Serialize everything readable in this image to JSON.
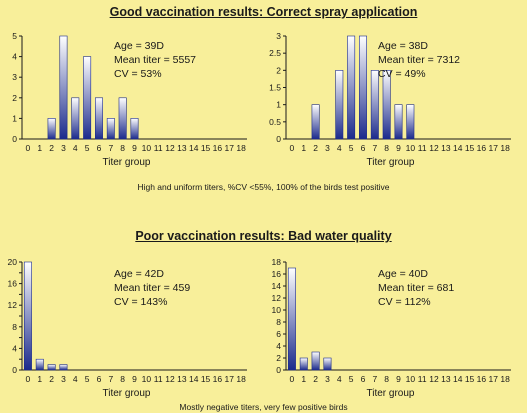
{
  "sections": [
    {
      "title": "Good vaccination results: Correct spray application",
      "caption": "High and uniform titers, %CV <55%, 100% of the birds test positive"
    },
    {
      "title": "Poor vaccination results: Bad water quality",
      "caption": "Mostly negative titers, very few positive birds"
    }
  ],
  "colors": {
    "background": "#f8ef9a",
    "bar_dark": "#1b2a8c",
    "bar_light": "#ffffff",
    "axis": "#1a1a1a"
  },
  "chart_data": [
    {
      "type": "bar",
      "categories": [
        "0",
        "1",
        "2",
        "3",
        "4",
        "5",
        "6",
        "7",
        "8",
        "9",
        "10",
        "11",
        "12",
        "13",
        "14",
        "15",
        "16",
        "17",
        "18"
      ],
      "values": [
        0,
        0,
        1,
        5,
        2,
        4,
        2,
        1,
        2,
        1,
        0,
        0,
        0,
        0,
        0,
        0,
        0,
        0,
        0
      ],
      "xlabel": "Titer group",
      "ylabel": "",
      "ylim": [
        0,
        5
      ],
      "yticks": [
        "0",
        "1",
        "2",
        "3",
        "4",
        "5"
      ],
      "grid": false,
      "stats": [
        "Age = 39D",
        "Mean titer = 5557",
        "CV = 53%"
      ]
    },
    {
      "type": "bar",
      "categories": [
        "0",
        "1",
        "2",
        "3",
        "4",
        "5",
        "6",
        "7",
        "8",
        "9",
        "10",
        "11",
        "12",
        "13",
        "14",
        "15",
        "16",
        "17",
        "18"
      ],
      "values": [
        0,
        0,
        1,
        0,
        2,
        3,
        3,
        2,
        2,
        1,
        1,
        0,
        0,
        0,
        0,
        0,
        0,
        0,
        0
      ],
      "xlabel": "Titer group",
      "ylabel": "",
      "ylim": [
        0,
        3
      ],
      "yticks": [
        "0",
        "0.5",
        "1",
        "1.5",
        "2",
        "2.5",
        "3"
      ],
      "grid": false,
      "stats": [
        "Age = 38D",
        "Mean titer = 7312",
        "CV = 49%"
      ]
    },
    {
      "type": "bar",
      "categories": [
        "0",
        "1",
        "2",
        "3",
        "4",
        "5",
        "6",
        "7",
        "8",
        "9",
        "10",
        "11",
        "12",
        "13",
        "14",
        "15",
        "16",
        "17",
        "18"
      ],
      "values": [
        20,
        2,
        1,
        1,
        0,
        0,
        0,
        0,
        0,
        0,
        0,
        0,
        0,
        0,
        0,
        0,
        0,
        0,
        0
      ],
      "xlabel": "Titer group",
      "ylabel": "",
      "ylim": [
        0,
        20
      ],
      "yticks": [
        "0",
        "2",
        "4",
        "6",
        "8",
        "10",
        "12",
        "14",
        "16",
        "18",
        "20"
      ],
      "ytick_labels_shown": [
        "0",
        "4",
        "8",
        "12",
        "16",
        "20"
      ],
      "grid": false,
      "stats": [
        "Age = 42D",
        "Mean titer = 459",
        "CV = 143%"
      ]
    },
    {
      "type": "bar",
      "categories": [
        "0",
        "1",
        "2",
        "3",
        "4",
        "5",
        "6",
        "7",
        "8",
        "9",
        "10",
        "11",
        "12",
        "13",
        "14",
        "15",
        "16",
        "17",
        "18"
      ],
      "values": [
        17,
        2,
        3,
        2,
        0,
        0,
        0,
        0,
        0,
        0,
        0,
        0,
        0,
        0,
        0,
        0,
        0,
        0,
        0
      ],
      "xlabel": "Titer group",
      "ylabel": "",
      "ylim": [
        0,
        18
      ],
      "yticks": [
        "0",
        "2",
        "4",
        "6",
        "8",
        "10",
        "12",
        "14",
        "16",
        "18"
      ],
      "ytick_labels_shown": [
        "0",
        "2",
        "4",
        "6",
        "8",
        "10",
        "12",
        "14",
        "16",
        "18"
      ],
      "grid": false,
      "stats": [
        "Age = 40D",
        "Mean titer = 681",
        "CV = 112%"
      ]
    }
  ]
}
